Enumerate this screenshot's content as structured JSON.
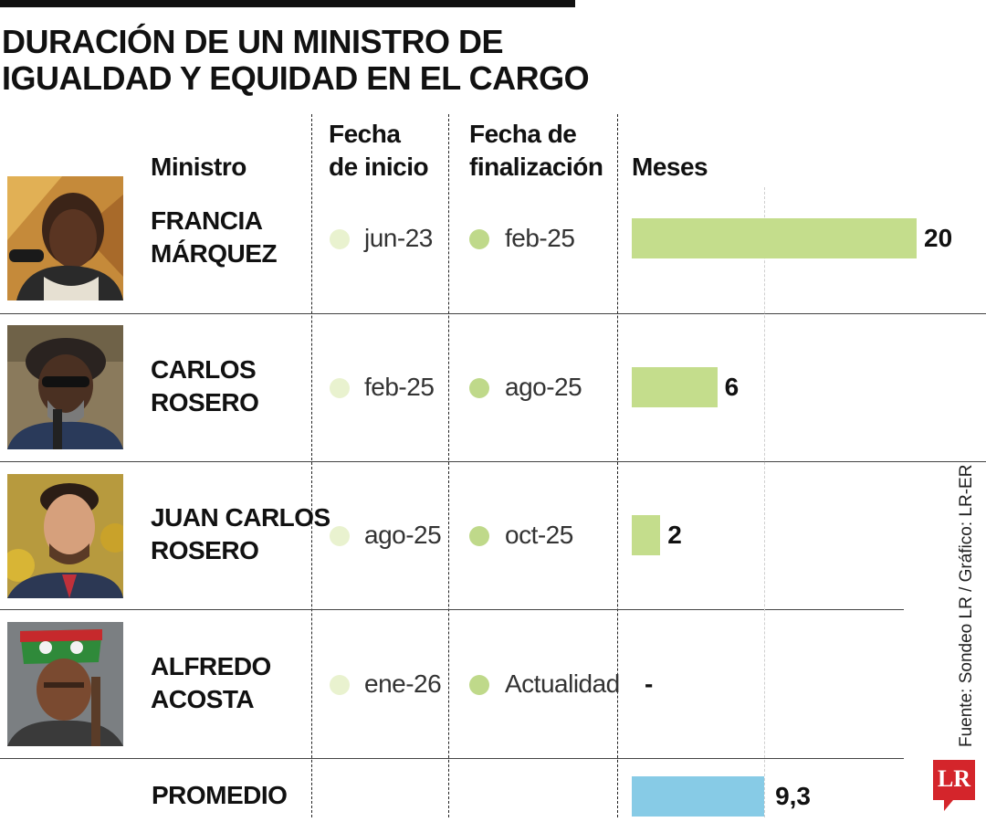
{
  "title": "DURACIÓN DE UN MINISTRO DE IGUALDAD Y EQUIDAD EN EL CARGO",
  "headers": {
    "ministro": "Ministro",
    "inicio_1": "Fecha",
    "inicio_2": "de inicio",
    "fin_1": "Fecha de",
    "fin_2": "finalización",
    "meses": "Meses"
  },
  "colors": {
    "bar": "#c4dd8c",
    "average_bar": "#87cbe6",
    "start_dot": "#e9f2cf",
    "end_dot": "#bfd98a",
    "logo": "#d4252b"
  },
  "chart_data": {
    "type": "bar",
    "orientation": "horizontal",
    "categories": [
      "FRANCIA MÁRQUEZ",
      "CARLOS ROSERO",
      "JUAN CARLOS ROSERO",
      "ALFREDO ACOSTA"
    ],
    "values": [
      20,
      6,
      2,
      null
    ],
    "value_labels": [
      "20",
      "6",
      "2",
      "-"
    ],
    "average": {
      "label": "PROMEDIO",
      "value": 9.3,
      "value_label": "9,3"
    },
    "grid": true
  },
  "rows": [
    {
      "name_1": "FRANCIA",
      "name_2": "MÁRQUEZ",
      "start": "jun-23",
      "end": "feb-25",
      "photo_icon": "portrait-icon"
    },
    {
      "name_1": "CARLOS",
      "name_2": "ROSERO",
      "start": "feb-25",
      "end": "ago-25",
      "photo_icon": "portrait-icon"
    },
    {
      "name_1": "JUAN CARLOS",
      "name_2": "ROSERO",
      "start": "ago-25",
      "end": "oct-25",
      "photo_icon": "portrait-icon"
    },
    {
      "name_1": "ALFREDO",
      "name_2": "ACOSTA",
      "start": "ene-26",
      "end": "Actualidad",
      "photo_icon": "portrait-icon"
    }
  ],
  "source": "Fuente: Sondeo LR / Gráfico: LR-ER",
  "logo": "LR"
}
